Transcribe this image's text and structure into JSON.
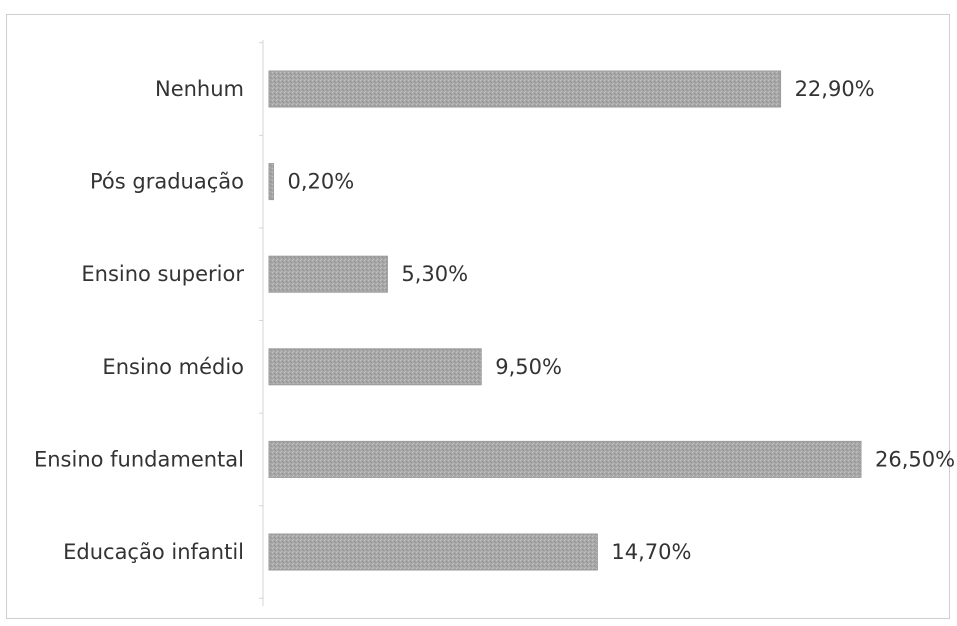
{
  "chart_data": {
    "type": "bar",
    "orientation": "horizontal",
    "title": "",
    "xlabel": "",
    "ylabel": "",
    "categories": [
      "Nenhum",
      "Pós graduação",
      "Ensino superior",
      "Ensino médio",
      "Ensino fundamental",
      "Educação infantil"
    ],
    "values": [
      22.9,
      0.2,
      5.3,
      9.5,
      26.5,
      14.7
    ],
    "value_labels": [
      "22,90%",
      "0,20%",
      "5,30%",
      "9,50%",
      "26,50%",
      "14,70%"
    ],
    "xlim": [
      0,
      26.5
    ],
    "grid": false,
    "legend": "none",
    "bar_color": "#a9a9a9"
  }
}
